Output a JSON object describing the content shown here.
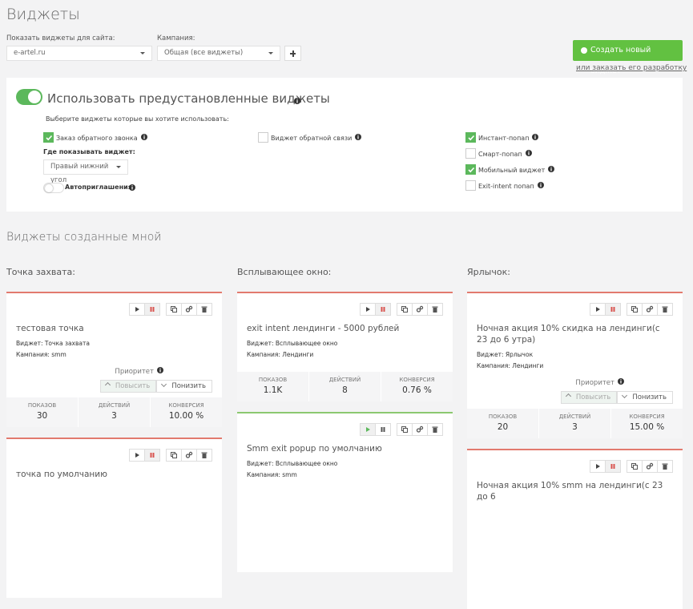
{
  "header": {
    "title": "Виджеты"
  },
  "filters": {
    "site_label": "Показать виджеты для сайта:",
    "site_value": "e-artel.ru",
    "campaign_label": "Кампания:",
    "campaign_value": "Общая (все виджеты)"
  },
  "create_button": "Создать новый виджет",
  "order_link": "или заказать его разработку",
  "preset": {
    "enabled": true,
    "title": "Использовать предустановленные виджеты",
    "prompt": "Выберите виджеты которые вы хотите использовать:",
    "options": [
      {
        "label": "Заказ обратного звонка",
        "checked": true,
        "column": 0
      },
      {
        "label": "Виджет обратной связи",
        "checked": false,
        "column": 1
      },
      {
        "label": "Инстант-попап",
        "checked": true,
        "column": 2
      },
      {
        "label": "Смарт-попап",
        "checked": false,
        "column": 2
      },
      {
        "label": "Мобильный виджет",
        "checked": true,
        "column": 2
      },
      {
        "label": "Exit-intent попап",
        "checked": false,
        "column": 2
      }
    ],
    "where_label": "Где показывать виджет:",
    "position": "Правый нижний угол",
    "auto_invite": "Автоприглашения",
    "auto_invite_enabled": false
  },
  "my_widgets": {
    "title": "Виджеты созданные мной",
    "priority": {
      "label": "Приоритет",
      "up": "Повысить",
      "down": "Понизить"
    },
    "stat_labels": [
      "ПОКАЗОВ",
      "ДЕЙСТВИЙ",
      "КОНВЕРСИЯ"
    ],
    "columns": [
      {
        "title": "Точка захвата:",
        "cards": [
          {
            "name": "тестовая точка",
            "widget": "Виджет: Точка захвата",
            "campaign": "Кампания: smm",
            "status": "paused",
            "priority": true,
            "stats": [
              "30",
              "3",
              "10.00 %"
            ]
          },
          {
            "name": "точка по умолчанию",
            "status": "paused"
          }
        ]
      },
      {
        "title": "Всплывающее окно:",
        "cards": [
          {
            "name": "exit intent лендинги - 5000 рублей",
            "widget": "Виджет: Всплывающее окно",
            "campaign": "Кампания: Лендинги",
            "status": "paused",
            "priority": false,
            "stats": [
              "1.1K",
              "8",
              "0.76 %"
            ]
          },
          {
            "name": "Smm exit popup по умолчанию",
            "widget": "Виджет: Всплывающее окно",
            "campaign": "Кампания: smm",
            "status": "active"
          }
        ]
      },
      {
        "title": "Ярлычок:",
        "cards": [
          {
            "name": "Ночная акция 10% скидка на лендинги(с 23 до 6 утра)",
            "widget": "Виджет: Ярлычок",
            "campaign": "Кампания: Лендинги",
            "status": "paused",
            "priority": true,
            "stats": [
              "20",
              "3",
              "15.00 %"
            ]
          },
          {
            "name": "Ночная акция 10% smm на лендинги(с 23 до 6",
            "status": "paused"
          }
        ]
      }
    ]
  }
}
